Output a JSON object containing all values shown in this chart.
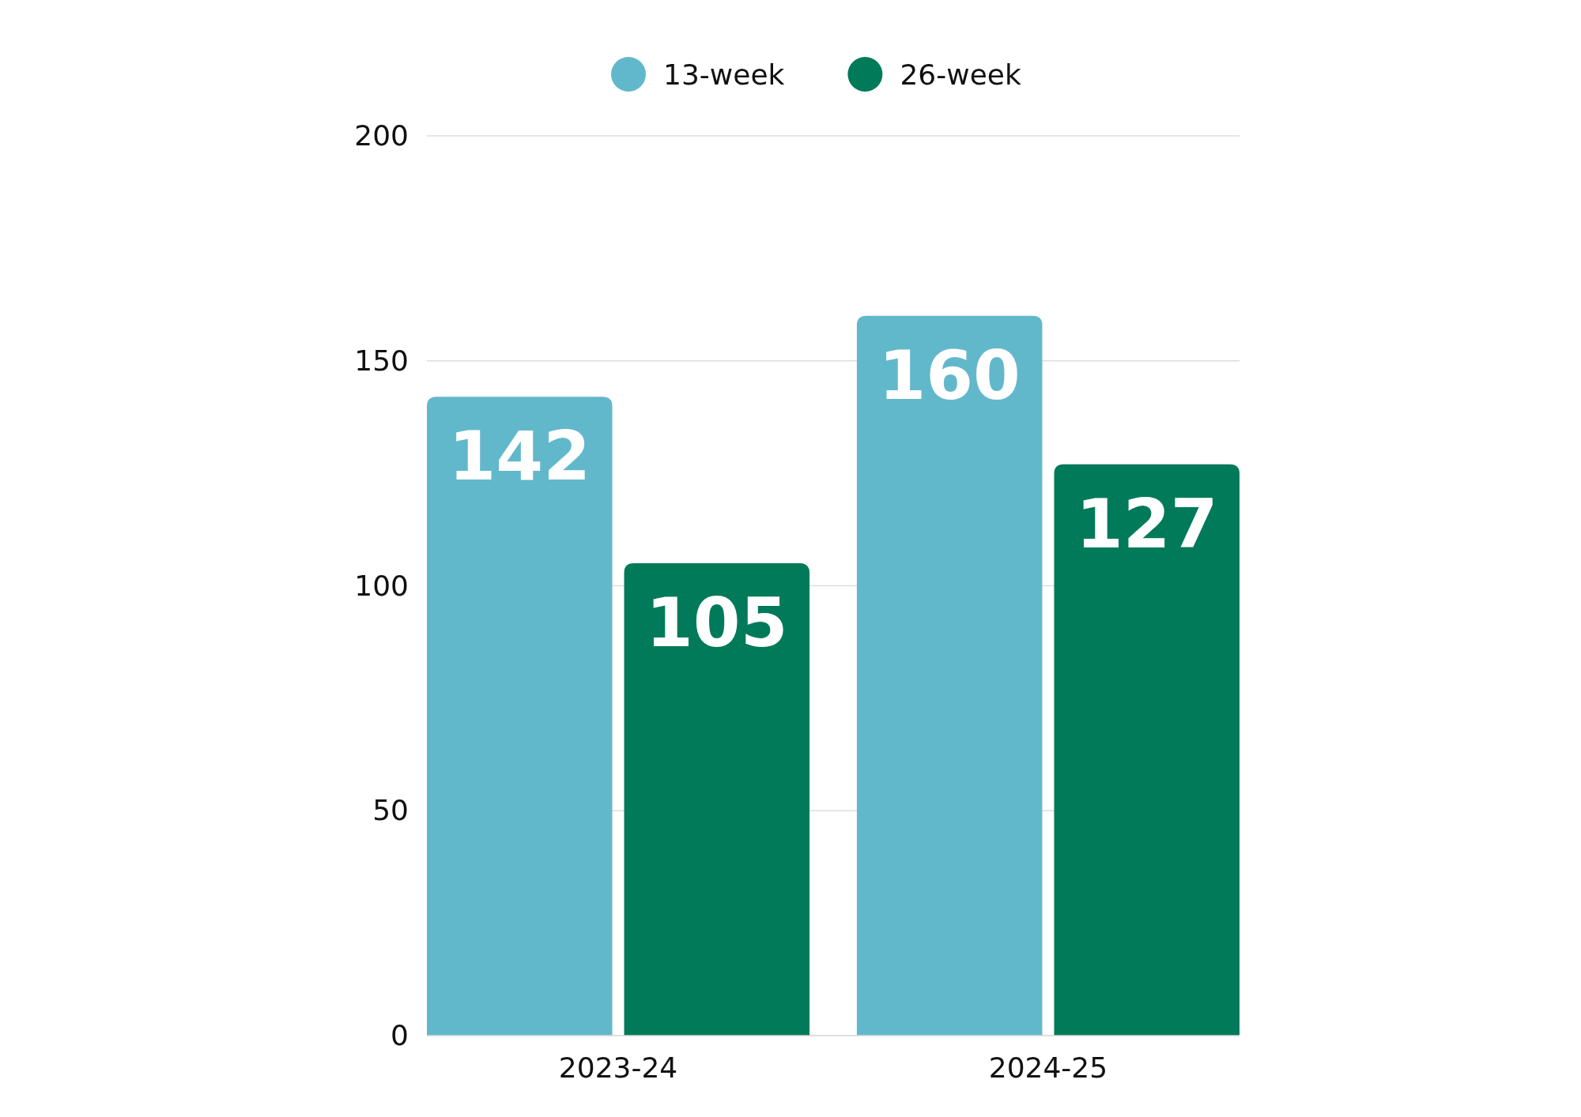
{
  "chart_data": {
    "type": "bar",
    "categories": [
      "2023-24",
      "2024-25"
    ],
    "series": [
      {
        "name": "13-week",
        "color": "#62b8cb",
        "values": [
          142,
          160
        ]
      },
      {
        "name": "26-week",
        "color": "#017a5a",
        "values": [
          105,
          127
        ]
      }
    ],
    "ylim": [
      0,
      200
    ],
    "yticks": [
      0,
      50,
      100,
      150,
      200
    ],
    "grid": "y",
    "legend": "top",
    "data_labels": true
  }
}
